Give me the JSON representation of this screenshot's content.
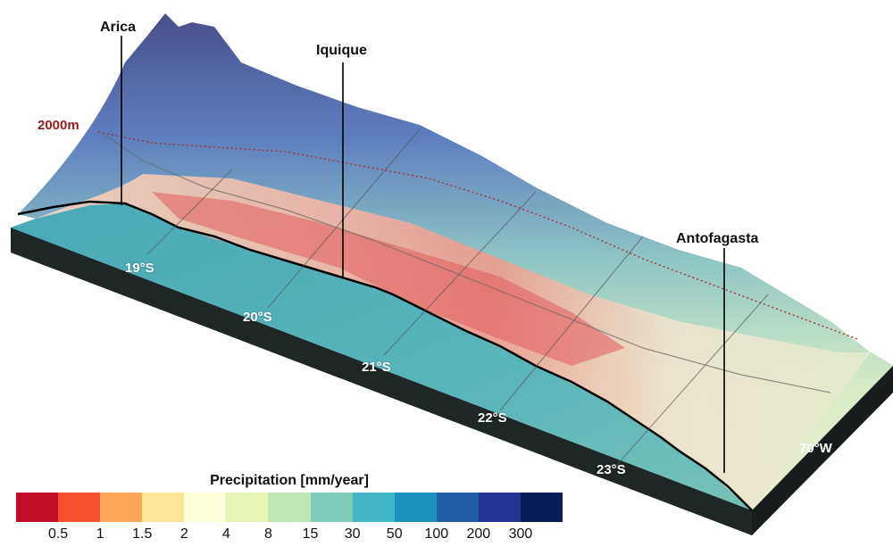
{
  "map": {
    "cities": [
      {
        "name": "Arica"
      },
      {
        "name": "Iquique"
      },
      {
        "name": "Antofagasta"
      }
    ],
    "latitudes": [
      "19°S",
      "20°S",
      "21°S",
      "22°S",
      "23°S"
    ],
    "longitude_label": "70°W",
    "contour_label": "2000m"
  },
  "legend": {
    "title": "Precipitation [mm/year]",
    "colors": [
      "#c00d2a",
      "#f4512e",
      "#fca65a",
      "#fde496",
      "#fefed9",
      "#e6f4b4",
      "#c1e6b6",
      "#7fcdbb",
      "#41b6c4",
      "#1d91c0",
      "#225ea8",
      "#253494",
      "#081d58"
    ],
    "ticks": [
      "0.5",
      "1",
      "1.5",
      "2",
      "4",
      "8",
      "15",
      "30",
      "50",
      "100",
      "200",
      "300"
    ]
  },
  "colors": {
    "ocean": "#5fb3b8",
    "base_side": "#1f2626",
    "coastline": "#000000"
  }
}
